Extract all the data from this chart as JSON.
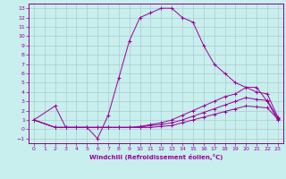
{
  "title": "",
  "xlabel": "Windchill (Refroidissement éolien,°C)",
  "ylabel": "",
  "xlim": [
    -0.5,
    23.5
  ],
  "ylim": [
    -1.5,
    13.5
  ],
  "yticks": [
    -1,
    0,
    1,
    2,
    3,
    4,
    5,
    6,
    7,
    8,
    9,
    10,
    11,
    12,
    13
  ],
  "xticks": [
    0,
    1,
    2,
    3,
    4,
    5,
    6,
    7,
    8,
    9,
    10,
    11,
    12,
    13,
    14,
    15,
    16,
    17,
    18,
    19,
    20,
    21,
    22,
    23
  ],
  "background_color": "#c8eeee",
  "grid_color": "#aacccc",
  "line_color": "#990099",
  "spine_color": "#880088",
  "lines": [
    {
      "x": [
        0,
        2,
        3,
        4,
        5,
        6,
        7,
        8,
        9,
        10,
        11,
        12,
        13,
        14,
        15,
        16,
        17,
        18,
        19,
        20,
        21,
        22,
        23
      ],
      "y": [
        1,
        2.5,
        0.2,
        0.2,
        0.2,
        -1,
        1.5,
        5.5,
        9.5,
        12,
        12.5,
        13,
        13,
        12,
        11.5,
        9,
        7,
        6,
        5,
        4.5,
        4.5,
        3,
        1
      ]
    },
    {
      "x": [
        0,
        2,
        3,
        4,
        5,
        6,
        7,
        8,
        9,
        10,
        11,
        12,
        13,
        14,
        15,
        16,
        17,
        18,
        19,
        20,
        21,
        22,
        23
      ],
      "y": [
        1,
        0.2,
        0.2,
        0.2,
        0.2,
        0.2,
        0.2,
        0.2,
        0.2,
        0.3,
        0.5,
        0.7,
        1.0,
        1.5,
        2.0,
        2.5,
        3.0,
        3.5,
        3.8,
        4.5,
        4.0,
        3.8,
        1.3
      ]
    },
    {
      "x": [
        0,
        2,
        3,
        4,
        5,
        6,
        7,
        8,
        9,
        10,
        11,
        12,
        13,
        14,
        15,
        16,
        17,
        18,
        19,
        20,
        21,
        22,
        23
      ],
      "y": [
        1,
        0.2,
        0.2,
        0.2,
        0.2,
        0.2,
        0.2,
        0.2,
        0.2,
        0.2,
        0.4,
        0.5,
        0.7,
        1.0,
        1.4,
        1.8,
        2.2,
        2.6,
        3.0,
        3.4,
        3.2,
        3.1,
        1.2
      ]
    },
    {
      "x": [
        0,
        2,
        3,
        4,
        5,
        6,
        7,
        8,
        9,
        10,
        11,
        12,
        13,
        14,
        15,
        16,
        17,
        18,
        19,
        20,
        21,
        22,
        23
      ],
      "y": [
        1,
        0.2,
        0.2,
        0.2,
        0.2,
        0.2,
        0.2,
        0.2,
        0.2,
        0.2,
        0.2,
        0.3,
        0.4,
        0.7,
        1.0,
        1.3,
        1.6,
        1.9,
        2.2,
        2.5,
        2.4,
        2.3,
        1.1
      ]
    }
  ]
}
